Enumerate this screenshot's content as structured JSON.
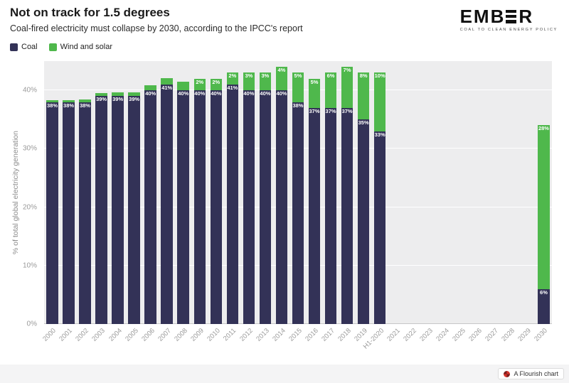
{
  "header": {
    "title": "Not on track for 1.5 degrees",
    "subtitle": "Coal-fired electricity must collapse by 2030, according to the IPCC's report"
  },
  "logo": {
    "part1": "EMB",
    "part2": "R",
    "tagline": "COAL TO CLEAN ENERGY POLICY"
  },
  "legend": [
    {
      "label": "Coal",
      "color": "#333257"
    },
    {
      "label": "Wind and solar",
      "color": "#4fb84c"
    }
  ],
  "footer": {
    "badge_label": "A Flourish chart"
  },
  "chart_data": {
    "type": "bar",
    "stacked": true,
    "title": "Not on track for 1.5 degrees",
    "subtitle": "Coal-fired electricity must collapse by 2030, according to the IPCC's report",
    "ylabel": "% of total global electricity generation",
    "ylim": [
      0,
      45
    ],
    "yticks": [
      0,
      10,
      20,
      30,
      40
    ],
    "grid": "horizontal",
    "legend_position": "top-left",
    "categories": [
      "2000",
      "2001",
      "2002",
      "2003",
      "2004",
      "2005",
      "2006",
      "2007",
      "2008",
      "2009",
      "2010",
      "2011",
      "2012",
      "2013",
      "2014",
      "2015",
      "2016",
      "2017",
      "2018",
      "2019",
      "H1-2020",
      "2021",
      "2022",
      "2023",
      "2024",
      "2025",
      "2026",
      "2027",
      "2028",
      "2029",
      "2030"
    ],
    "series": [
      {
        "name": "Coal",
        "color": "#333257",
        "values": [
          38,
          38,
          38,
          39,
          39,
          39,
          40,
          41,
          40,
          40,
          40,
          41,
          40,
          40,
          40,
          38,
          37,
          37,
          37,
          35,
          33,
          null,
          null,
          null,
          null,
          null,
          null,
          null,
          null,
          null,
          6
        ],
        "labels": [
          "38%",
          "38%",
          "38%",
          "39%",
          "39%",
          "39%",
          "40%",
          "41%",
          "40%",
          "40%",
          "40%",
          "41%",
          "40%",
          "40%",
          "40%",
          "38%",
          "37%",
          "37%",
          "37%",
          "35%",
          "33%",
          "",
          "",
          "",
          "",
          "",
          "",
          "",
          "",
          "",
          "6%"
        ]
      },
      {
        "name": "Wind and solar",
        "color": "#4fb84c",
        "values": [
          0.3,
          0.3,
          0.4,
          0.5,
          0.6,
          0.7,
          0.9,
          1.1,
          1.5,
          2,
          2,
          2,
          3,
          3,
          4,
          5,
          5,
          6,
          7,
          8,
          10,
          null,
          null,
          null,
          null,
          null,
          null,
          null,
          null,
          null,
          28
        ],
        "labels": [
          "",
          "",
          "",
          "",
          "",
          "",
          "",
          "",
          "",
          "2%",
          "2%",
          "2%",
          "3%",
          "3%",
          "4%",
          "5%",
          "5%",
          "6%",
          "7%",
          "8%",
          "10%",
          "",
          "",
          "",
          "",
          "",
          "",
          "",
          "",
          "",
          "28%"
        ]
      }
    ]
  }
}
